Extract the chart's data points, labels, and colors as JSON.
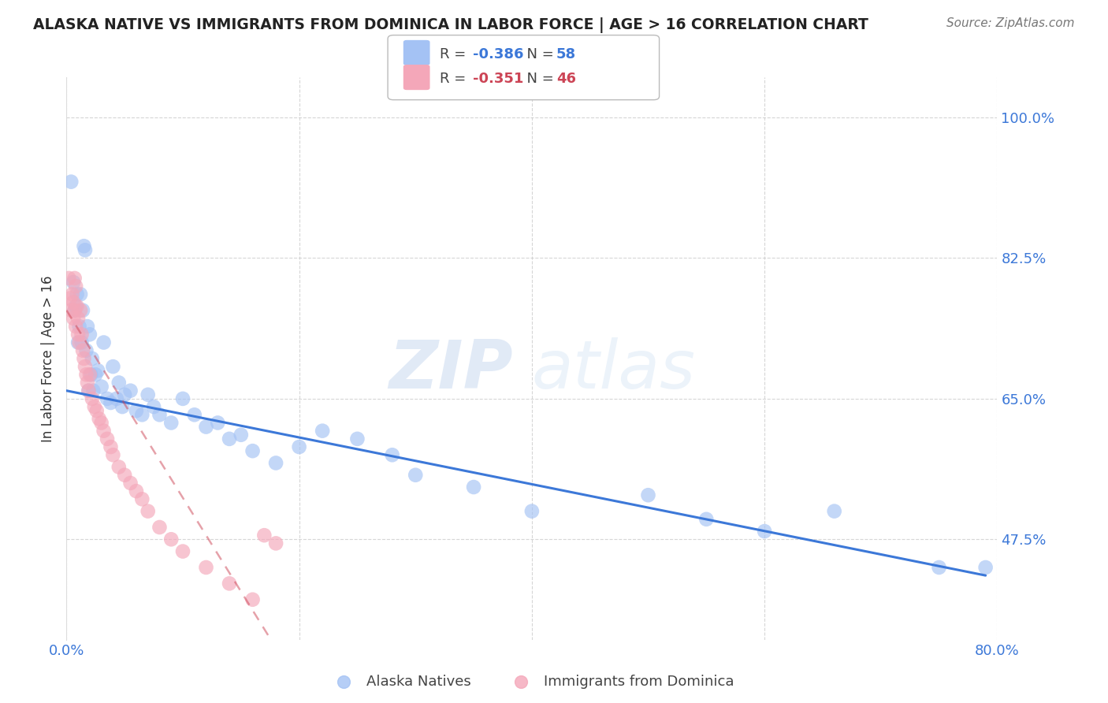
{
  "title": "ALASKA NATIVE VS IMMIGRANTS FROM DOMINICA IN LABOR FORCE | AGE > 16 CORRELATION CHART",
  "source": "Source: ZipAtlas.com",
  "ylabel": "In Labor Force | Age > 16",
  "xlim": [
    0.0,
    0.8
  ],
  "ylim": [
    0.35,
    1.05
  ],
  "yticks": [
    0.475,
    0.65,
    0.825,
    1.0
  ],
  "ytick_labels": [
    "47.5%",
    "65.0%",
    "82.5%",
    "100.0%"
  ],
  "xticks": [
    0.0,
    0.2,
    0.4,
    0.6,
    0.8
  ],
  "xtick_labels": [
    "0.0%",
    "",
    "",
    "",
    "80.0%"
  ],
  "legend1_label": "Alaska Natives",
  "legend2_label": "Immigrants from Dominica",
  "R1": -0.386,
  "N1": 58,
  "R2": -0.351,
  "N2": 46,
  "color_blue": "#a4c2f4",
  "color_pink": "#f4a7b9",
  "line_blue": "#3c78d8",
  "line_pink": "#cc4455",
  "watermark_zip": "ZIP",
  "watermark_atlas": "atlas",
  "background": "#ffffff",
  "alaska_x": [
    0.004,
    0.006,
    0.007,
    0.008,
    0.009,
    0.01,
    0.011,
    0.012,
    0.013,
    0.014,
    0.015,
    0.016,
    0.017,
    0.018,
    0.019,
    0.02,
    0.021,
    0.022,
    0.023,
    0.025,
    0.027,
    0.03,
    0.032,
    0.035,
    0.038,
    0.04,
    0.043,
    0.045,
    0.048,
    0.05,
    0.055,
    0.06,
    0.065,
    0.07,
    0.075,
    0.08,
    0.09,
    0.1,
    0.11,
    0.12,
    0.13,
    0.14,
    0.15,
    0.16,
    0.18,
    0.2,
    0.22,
    0.25,
    0.28,
    0.3,
    0.35,
    0.4,
    0.5,
    0.55,
    0.6,
    0.66,
    0.75,
    0.79
  ],
  "alaska_y": [
    0.92,
    0.795,
    0.76,
    0.765,
    0.78,
    0.72,
    0.74,
    0.78,
    0.72,
    0.76,
    0.84,
    0.835,
    0.71,
    0.74,
    0.66,
    0.73,
    0.68,
    0.7,
    0.66,
    0.68,
    0.685,
    0.665,
    0.72,
    0.65,
    0.645,
    0.69,
    0.65,
    0.67,
    0.64,
    0.655,
    0.66,
    0.635,
    0.63,
    0.655,
    0.64,
    0.63,
    0.62,
    0.65,
    0.63,
    0.615,
    0.62,
    0.6,
    0.605,
    0.585,
    0.57,
    0.59,
    0.61,
    0.6,
    0.58,
    0.555,
    0.54,
    0.51,
    0.53,
    0.5,
    0.485,
    0.51,
    0.44,
    0.44
  ],
  "dominica_x": [
    0.002,
    0.003,
    0.004,
    0.005,
    0.006,
    0.006,
    0.007,
    0.007,
    0.008,
    0.008,
    0.009,
    0.01,
    0.01,
    0.011,
    0.012,
    0.013,
    0.014,
    0.015,
    0.016,
    0.017,
    0.018,
    0.019,
    0.02,
    0.022,
    0.024,
    0.026,
    0.028,
    0.03,
    0.032,
    0.035,
    0.038,
    0.04,
    0.045,
    0.05,
    0.055,
    0.06,
    0.065,
    0.07,
    0.08,
    0.09,
    0.1,
    0.12,
    0.14,
    0.16,
    0.17,
    0.18
  ],
  "dominica_y": [
    0.8,
    0.775,
    0.76,
    0.78,
    0.75,
    0.77,
    0.76,
    0.8,
    0.74,
    0.79,
    0.765,
    0.75,
    0.73,
    0.72,
    0.76,
    0.73,
    0.71,
    0.7,
    0.69,
    0.68,
    0.67,
    0.66,
    0.68,
    0.65,
    0.64,
    0.635,
    0.625,
    0.62,
    0.61,
    0.6,
    0.59,
    0.58,
    0.565,
    0.555,
    0.545,
    0.535,
    0.525,
    0.51,
    0.49,
    0.475,
    0.46,
    0.44,
    0.42,
    0.4,
    0.48,
    0.47
  ],
  "blue_line_x": [
    0.0,
    0.79
  ],
  "blue_line_y": [
    0.66,
    0.43
  ],
  "pink_line_x": [
    0.0,
    0.18
  ],
  "pink_line_y": [
    0.76,
    0.34
  ]
}
